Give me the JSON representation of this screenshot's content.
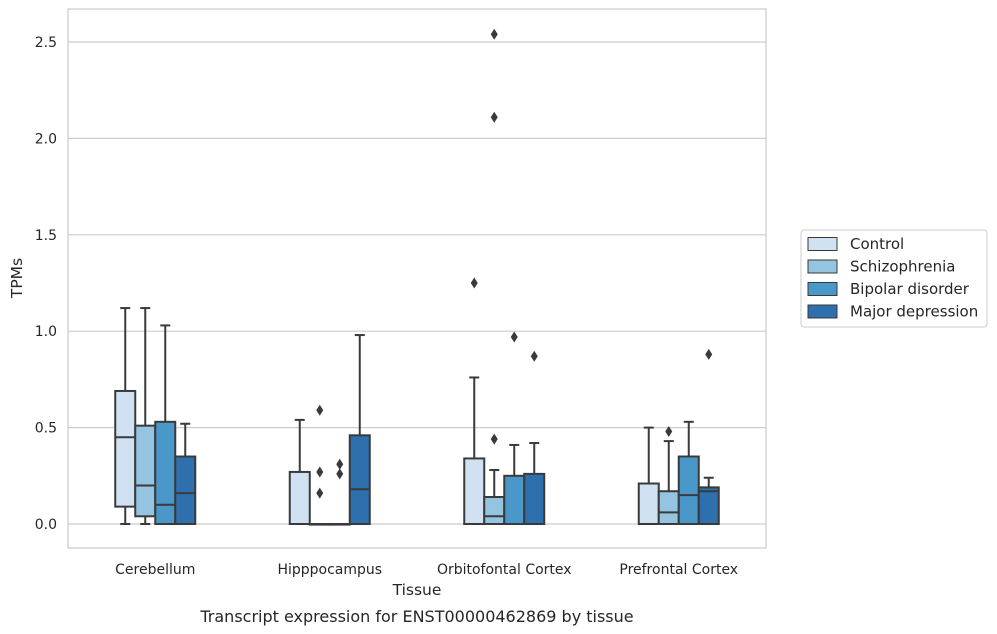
{
  "caption": "Transcript expression for ENST00000462869 by tissue",
  "chart_data": {
    "type": "boxplot",
    "xlabel": "Tissue",
    "ylabel": "TPMs",
    "ylim": [
      -0.12,
      2.68
    ],
    "yticks": [
      0.0,
      0.5,
      1.0,
      1.5,
      2.0,
      2.5
    ],
    "ytick_labels": [
      "0.0",
      "0.5",
      "1.0",
      "1.5",
      "2.0",
      "2.5"
    ],
    "grid": "horizontal",
    "legend_position": "right",
    "categories": [
      "Cerebellum",
      "Hipppocampus",
      "Orbitofontal Cortex",
      "Prefrontal Cortex"
    ],
    "series": [
      {
        "name": "Control",
        "color": "#d0e1f2",
        "boxes": [
          {
            "whislo": 0.0,
            "q1": 0.09,
            "med": 0.45,
            "q3": 0.69,
            "whishi": 1.12,
            "fliers": []
          },
          {
            "whislo": 0.0,
            "q1": 0.0,
            "med": 0.0,
            "q3": 0.27,
            "whishi": 0.54,
            "fliers": []
          },
          {
            "whislo": 0.0,
            "q1": 0.0,
            "med": 0.0,
            "q3": 0.34,
            "whishi": 0.76,
            "fliers": [
              1.25
            ]
          },
          {
            "whislo": 0.0,
            "q1": 0.0,
            "med": 0.0,
            "q3": 0.21,
            "whishi": 0.5,
            "fliers": []
          }
        ]
      },
      {
        "name": "Schizophrenia",
        "color": "#94c4df",
        "boxes": [
          {
            "whislo": 0.0,
            "q1": 0.04,
            "med": 0.2,
            "q3": 0.51,
            "whishi": 1.12,
            "fliers": []
          },
          {
            "whislo": 0.0,
            "q1": 0.0,
            "med": 0.0,
            "q3": 0.0,
            "whishi": 0.0,
            "fliers": [
              0.16,
              0.27,
              0.59
            ]
          },
          {
            "whislo": 0.0,
            "q1": 0.0,
            "med": 0.04,
            "q3": 0.14,
            "whishi": 0.28,
            "fliers": [
              0.44,
              2.11,
              2.54
            ]
          },
          {
            "whislo": 0.0,
            "q1": 0.0,
            "med": 0.06,
            "q3": 0.17,
            "whishi": 0.43,
            "fliers": [
              0.48
            ]
          }
        ]
      },
      {
        "name": "Bipolar disorder",
        "color": "#4a98c9",
        "boxes": [
          {
            "whislo": 0.0,
            "q1": 0.0,
            "med": 0.1,
            "q3": 0.53,
            "whishi": 1.03,
            "fliers": []
          },
          {
            "whislo": 0.0,
            "q1": 0.0,
            "med": 0.0,
            "q3": 0.0,
            "whishi": 0.0,
            "fliers": [
              0.26,
              0.31
            ]
          },
          {
            "whislo": 0.0,
            "q1": 0.0,
            "med": 0.0,
            "q3": 0.25,
            "whishi": 0.41,
            "fliers": [
              0.97
            ]
          },
          {
            "whislo": 0.0,
            "q1": 0.0,
            "med": 0.15,
            "q3": 0.35,
            "whishi": 0.53,
            "fliers": []
          }
        ]
      },
      {
        "name": "Major depression",
        "color": "#2e6fae",
        "boxes": [
          {
            "whislo": 0.0,
            "q1": 0.0,
            "med": 0.16,
            "q3": 0.35,
            "whishi": 0.52,
            "fliers": []
          },
          {
            "whislo": 0.0,
            "q1": 0.0,
            "med": 0.18,
            "q3": 0.46,
            "whishi": 0.98,
            "fliers": []
          },
          {
            "whislo": 0.0,
            "q1": 0.0,
            "med": 0.0,
            "q3": 0.26,
            "whishi": 0.42,
            "fliers": [
              0.87
            ]
          },
          {
            "whislo": 0.0,
            "q1": 0.0,
            "med": 0.17,
            "q3": 0.19,
            "whishi": 0.24,
            "fliers": [
              0.88
            ]
          }
        ]
      }
    ]
  }
}
